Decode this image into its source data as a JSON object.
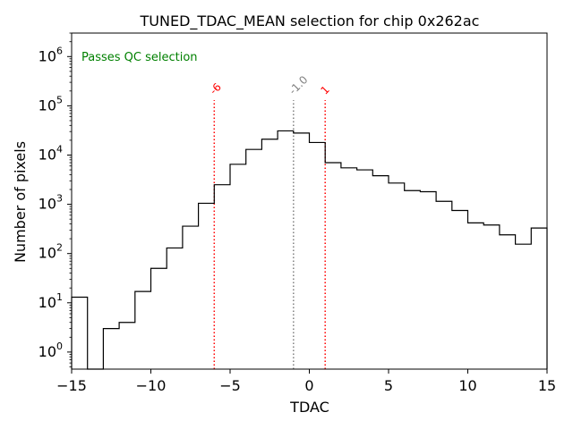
{
  "chart_data": {
    "type": "histogram",
    "title": "TUNED_TDAC_MEAN selection for chip 0x262ac",
    "xlabel": "TDAC",
    "ylabel": "Number of pixels",
    "yscale": "log",
    "xlim": [
      -15,
      15
    ],
    "ylim": [
      0.45,
      3000000
    ],
    "grid": false,
    "x_ticks": [
      -15,
      -10,
      -5,
      0,
      5,
      10,
      15
    ],
    "x_tick_labels": [
      "−15",
      "−10",
      "−5",
      "0",
      "5",
      "10",
      "15"
    ],
    "y_ticks": [
      {
        "value": 1,
        "base": "10",
        "exp": "0"
      },
      {
        "value": 10,
        "base": "10",
        "exp": "1"
      },
      {
        "value": 100,
        "base": "10",
        "exp": "2"
      },
      {
        "value": 1000,
        "base": "10",
        "exp": "3"
      },
      {
        "value": 10000,
        "base": "10",
        "exp": "4"
      },
      {
        "value": 100000,
        "base": "10",
        "exp": "5"
      },
      {
        "value": 1000000,
        "base": "10",
        "exp": "6"
      }
    ],
    "bin_edges": [
      -15,
      -14,
      -13,
      -12,
      -11,
      -10,
      -9,
      -8,
      -7,
      -6,
      -5,
      -4,
      -3,
      -2,
      -1,
      0,
      1,
      2,
      3,
      4,
      5,
      6,
      7,
      8,
      9,
      10,
      11,
      12,
      13,
      14,
      15
    ],
    "counts": [
      13,
      0,
      3,
      4,
      17,
      50,
      130,
      360,
      1050,
      2500,
      6500,
      13000,
      21000,
      31000,
      28000,
      18000,
      7000,
      5500,
      5000,
      3800,
      2700,
      1900,
      1800,
      1150,
      750,
      420,
      380,
      240,
      155,
      330
    ],
    "cut_lines": [
      {
        "x": -6,
        "label": "-6",
        "color": "#ff0000",
        "style": "dotted"
      },
      {
        "x": -1,
        "label": "-1.0",
        "color": "#808080",
        "style": "dotted"
      },
      {
        "x": 1,
        "label": "1",
        "color": "#ff0000",
        "style": "dotted"
      }
    ],
    "annotation": {
      "text": "Passes QC selection",
      "color": "#008000",
      "position": "top-left"
    },
    "colors": {
      "histogram": "#000000",
      "frame": "#000000"
    }
  }
}
